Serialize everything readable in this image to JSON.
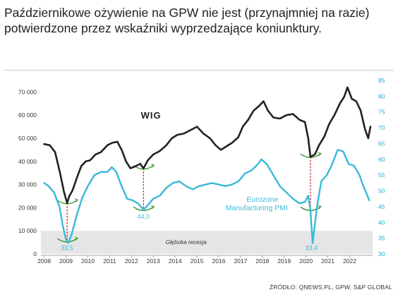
{
  "headline": "Październikowe ożywienie na GPW nie jest (przynajmniej na razie) potwierdzone przez wskaźniki wyprzedzające koniunktury.",
  "source": "ŹRÓDŁO: QNEWS.PL, GPW, S&P GLOBAL",
  "chart_data": {
    "type": "line",
    "x_ticks": [
      "2008",
      "2009",
      "2010",
      "2011",
      "2012",
      "2013",
      "2014",
      "2015",
      "2016",
      "2017",
      "2018",
      "2019",
      "2020",
      "2021",
      "2022"
    ],
    "y_left": {
      "min": 0,
      "max": 75000,
      "ticks": [
        0,
        10000,
        20000,
        30000,
        40000,
        50000,
        60000,
        70000
      ],
      "tick_labels": [
        "0",
        "10 000",
        "20 000",
        "30 000",
        "40 000",
        "50 000",
        "60 000",
        "70 000"
      ]
    },
    "y_right": {
      "min": 30,
      "max": 85,
      "ticks": [
        30,
        35,
        40,
        45,
        50,
        55,
        60,
        65,
        70,
        75,
        80,
        85
      ],
      "tick_labels": [
        "30",
        "35",
        "40",
        "45",
        "50",
        "55",
        "60",
        "65",
        "70",
        "75",
        "80",
        "85"
      ]
    },
    "series": [
      {
        "name": "WIG",
        "axis": "left",
        "color": "#222222",
        "x": [
          2008.0,
          2008.25,
          2008.5,
          2008.75,
          2008.9,
          2009.05,
          2009.15,
          2009.3,
          2009.5,
          2009.7,
          2009.9,
          2010.1,
          2010.35,
          2010.6,
          2010.9,
          2011.1,
          2011.35,
          2011.55,
          2011.75,
          2011.95,
          2012.2,
          2012.4,
          2012.55,
          2012.75,
          2013.0,
          2013.3,
          2013.6,
          2013.85,
          2014.1,
          2014.4,
          2014.7,
          2015.0,
          2015.3,
          2015.6,
          2015.85,
          2016.1,
          2016.35,
          2016.6,
          2016.9,
          2017.1,
          2017.35,
          2017.6,
          2017.85,
          2018.05,
          2018.25,
          2018.5,
          2018.8,
          2019.1,
          2019.4,
          2019.7,
          2019.95,
          2020.1,
          2020.2,
          2020.4,
          2020.6,
          2020.85,
          2021.05,
          2021.3,
          2021.55,
          2021.75,
          2021.9,
          2022.1,
          2022.3,
          2022.5,
          2022.7,
          2022.85,
          2022.95
        ],
        "y": [
          47500,
          47000,
          44000,
          34000,
          27000,
          22000,
          25000,
          27500,
          33000,
          38000,
          40000,
          40500,
          43000,
          44000,
          47000,
          48000,
          48500,
          45000,
          40000,
          37000,
          38000,
          39000,
          37000,
          40500,
          43000,
          44500,
          47000,
          50000,
          51500,
          52000,
          53500,
          55000,
          52000,
          50000,
          47000,
          45000,
          46500,
          48000,
          50500,
          55000,
          58000,
          62000,
          64000,
          66000,
          62000,
          59000,
          58500,
          60000,
          60500,
          58000,
          57000,
          50000,
          42000,
          43000,
          47000,
          51000,
          56000,
          60000,
          65000,
          68000,
          72000,
          67000,
          66000,
          62000,
          54000,
          50000,
          55000
        ]
      },
      {
        "name": "Eurozone Manufacturing PMI",
        "axis": "right",
        "color": "#39b9d8",
        "x": [
          2008.0,
          2008.2,
          2008.45,
          2008.7,
          2008.85,
          2009.0,
          2009.1,
          2009.25,
          2009.5,
          2009.75,
          2010.0,
          2010.3,
          2010.6,
          2010.9,
          2011.1,
          2011.3,
          2011.55,
          2011.8,
          2012.05,
          2012.3,
          2012.55,
          2012.75,
          2013.0,
          2013.3,
          2013.6,
          2013.9,
          2014.2,
          2014.5,
          2014.8,
          2015.1,
          2015.4,
          2015.7,
          2016.0,
          2016.3,
          2016.6,
          2016.9,
          2017.2,
          2017.5,
          2017.8,
          2017.95,
          2018.2,
          2018.5,
          2018.8,
          2019.1,
          2019.4,
          2019.7,
          2019.95,
          2020.1,
          2020.2,
          2020.3,
          2020.5,
          2020.7,
          2020.95,
          2021.2,
          2021.45,
          2021.7,
          2021.95,
          2022.2,
          2022.45,
          2022.6,
          2022.75,
          2022.9
        ],
        "y": [
          52.5,
          51.5,
          49.5,
          45.0,
          39.0,
          34.5,
          33.5,
          36.0,
          42.5,
          48.0,
          51.5,
          55.0,
          56.0,
          56.0,
          57.5,
          56.0,
          51.5,
          47.5,
          47.0,
          46.0,
          44.0,
          45.5,
          47.5,
          48.5,
          51.0,
          52.5,
          53.0,
          51.5,
          50.5,
          51.5,
          52.0,
          52.5,
          52.0,
          51.5,
          52.0,
          53.0,
          55.5,
          56.5,
          58.5,
          60.0,
          58.5,
          55.0,
          51.5,
          49.5,
          47.5,
          46.0,
          46.5,
          48.5,
          44.0,
          33.4,
          45.0,
          53.0,
          55.0,
          58.5,
          63.0,
          62.5,
          58.5,
          58.0,
          55.0,
          52.0,
          49.5,
          47.0
        ]
      }
    ],
    "annotations": [
      {
        "text": "WIG",
        "x": 2012.9,
        "y_left": 58500
      },
      {
        "text": "Eurozone Manufacturing PMI",
        "x": 2018.0,
        "y_right": 46.5
      },
      {
        "text": "33,5",
        "x": 2009.05,
        "y_right": 31.2
      },
      {
        "text": "44,0",
        "x": 2012.55,
        "y_right": 41.2
      },
      {
        "text": "33,4",
        "x": 2020.25,
        "y_right": 31.2
      },
      {
        "text": "Głęboka recesja",
        "x": 2014.5,
        "y_left": 4200
      }
    ],
    "recession_band": {
      "y_left_from": 0,
      "y_left_to": 10000
    },
    "dashed_links": [
      {
        "x": 2009.05
      },
      {
        "x": 2012.55
      },
      {
        "x": 2020.2
      }
    ],
    "x_range": [
      2007.85,
      2023.05
    ],
    "grid": false
  }
}
